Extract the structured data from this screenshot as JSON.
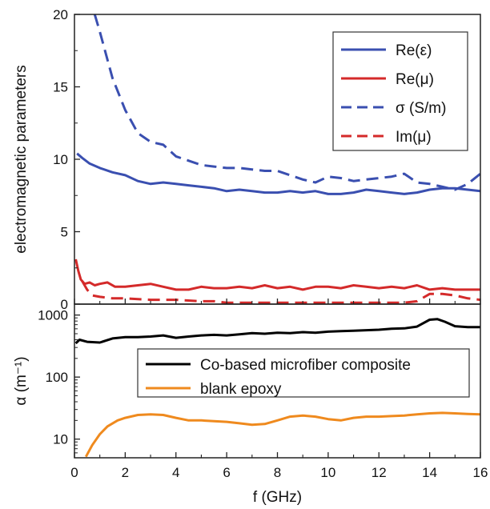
{
  "chart_data": [
    {
      "type": "line",
      "panel": "top",
      "xlabel": "",
      "ylabel": "electromagnetic parameters",
      "xlim": [
        0,
        16
      ],
      "ylim": [
        0,
        20
      ],
      "x_ticks": [
        0,
        2,
        4,
        6,
        8,
        10,
        12,
        14,
        16
      ],
      "y_ticks": [
        0,
        5,
        10,
        15,
        20
      ],
      "grid": false,
      "legend_position": "top-right",
      "series": [
        {
          "name": "Re(ε)",
          "color": "#3a4fb0",
          "dash": "solid",
          "x": [
            0.1,
            0.3,
            0.6,
            1,
            1.5,
            2,
            2.5,
            3,
            3.5,
            4,
            4.5,
            5,
            5.5,
            6,
            6.5,
            7,
            7.5,
            8,
            8.5,
            9,
            9.5,
            10,
            10.5,
            11,
            11.5,
            12,
            12.5,
            13,
            13.5,
            14,
            14.5,
            15,
            15.5,
            16
          ],
          "y": [
            10.4,
            10.1,
            9.7,
            9.4,
            9.1,
            8.9,
            8.5,
            8.3,
            8.4,
            8.3,
            8.2,
            8.1,
            8.0,
            7.8,
            7.9,
            7.8,
            7.7,
            7.7,
            7.8,
            7.7,
            7.8,
            7.6,
            7.6,
            7.7,
            7.9,
            7.8,
            7.7,
            7.6,
            7.7,
            7.9,
            8.0,
            8.0,
            7.9,
            7.8
          ]
        },
        {
          "name": "Re(μ)",
          "color": "#d42a2a",
          "dash": "solid",
          "x": [
            0.05,
            0.15,
            0.25,
            0.4,
            0.6,
            0.8,
            1,
            1.3,
            1.6,
            2,
            2.5,
            3,
            3.5,
            4,
            4.5,
            5,
            5.5,
            6,
            6.5,
            7,
            7.5,
            8,
            8.5,
            9,
            9.5,
            10,
            10.5,
            11,
            11.5,
            12,
            12.5,
            13,
            13.5,
            14,
            14.5,
            15,
            15.5,
            16
          ],
          "y": [
            3.1,
            2.3,
            1.7,
            1.4,
            1.5,
            1.3,
            1.4,
            1.5,
            1.2,
            1.2,
            1.3,
            1.4,
            1.2,
            1.0,
            1.0,
            1.2,
            1.1,
            1.1,
            1.2,
            1.1,
            1.3,
            1.1,
            1.2,
            1.0,
            1.2,
            1.2,
            1.1,
            1.3,
            1.2,
            1.1,
            1.2,
            1.1,
            1.3,
            1.0,
            1.1,
            1.0,
            1.0,
            1.0
          ]
        },
        {
          "name": "σ (S/m)",
          "color": "#3a4fb0",
          "dash": "dashed",
          "x": [
            0.8,
            1,
            1.5,
            2,
            2.5,
            3,
            3.5,
            4,
            4.5,
            5,
            5.5,
            6,
            6.5,
            7,
            7.5,
            8,
            8.5,
            9,
            9.5,
            10,
            10.5,
            11,
            11.5,
            12,
            12.5,
            13,
            13.5,
            14,
            14.5,
            15,
            15.5,
            16
          ],
          "y": [
            20,
            18.8,
            15.6,
            13.4,
            11.8,
            11.2,
            11.0,
            10.2,
            9.9,
            9.6,
            9.5,
            9.4,
            9.4,
            9.3,
            9.2,
            9.2,
            8.9,
            8.6,
            8.4,
            8.8,
            8.7,
            8.5,
            8.6,
            8.7,
            8.8,
            9.0,
            8.4,
            8.3,
            8.1,
            7.9,
            8.3,
            9.0
          ]
        },
        {
          "name": "Im(μ)",
          "color": "#d42a2a",
          "dash": "dashed",
          "x": [
            0.3,
            0.5,
            0.7,
            1,
            1.5,
            2,
            3,
            4,
            5,
            5.5,
            6,
            7,
            8,
            9,
            10,
            11,
            12,
            13,
            13.5,
            14,
            14.5,
            15,
            15.5,
            16
          ],
          "y": [
            1.6,
            1.0,
            0.6,
            0.5,
            0.4,
            0.4,
            0.3,
            0.3,
            0.2,
            0.2,
            0.1,
            0.1,
            0.1,
            0.1,
            0.1,
            0.1,
            0.1,
            0.1,
            0.2,
            0.7,
            0.7,
            0.6,
            0.4,
            0.3
          ]
        }
      ]
    },
    {
      "type": "line",
      "panel": "bottom",
      "xlabel": "f (GHz)",
      "ylabel": "α (m⁻¹)",
      "xlim": [
        0,
        16
      ],
      "ylim": [
        5,
        1500
      ],
      "yscale": "log",
      "x_ticks": [
        0,
        2,
        4,
        6,
        8,
        10,
        12,
        14,
        16
      ],
      "y_ticks": [
        10,
        100,
        1000
      ],
      "grid": false,
      "legend_position": "top-right",
      "series": [
        {
          "name": "Co-based microfiber composite",
          "color": "#000000",
          "dash": "solid",
          "x": [
            0.05,
            0.2,
            0.5,
            1,
            1.5,
            2,
            2.5,
            3,
            3.5,
            4,
            4.5,
            5,
            5.5,
            6,
            6.5,
            7,
            7.5,
            8,
            8.5,
            9,
            9.5,
            10,
            10.5,
            11,
            11.5,
            12,
            12.5,
            13,
            13.5,
            14,
            14.3,
            14.6,
            15,
            15.5,
            16
          ],
          "y": [
            350,
            400,
            370,
            360,
            420,
            440,
            440,
            450,
            470,
            430,
            450,
            470,
            480,
            470,
            490,
            510,
            500,
            520,
            510,
            530,
            520,
            540,
            550,
            560,
            570,
            580,
            600,
            610,
            650,
            840,
            860,
            780,
            660,
            640,
            640
          ]
        },
        {
          "name": "blank epoxy",
          "color": "#ef8a1e",
          "dash": "solid",
          "x": [
            0.45,
            0.7,
            1,
            1.3,
            1.7,
            2,
            2.5,
            3,
            3.5,
            4,
            4.5,
            5,
            5.5,
            6,
            6.5,
            7,
            7.5,
            8,
            8.5,
            9,
            9.5,
            10,
            10.5,
            11,
            11.5,
            12,
            12.5,
            13,
            13.5,
            14,
            14.5,
            15,
            15.5,
            16
          ],
          "y": [
            5.2,
            8,
            12,
            16,
            20,
            22,
            24.5,
            25,
            24.5,
            22,
            20,
            20,
            19.5,
            19,
            18,
            17,
            17.5,
            20,
            23,
            24,
            23,
            21,
            20,
            22,
            23,
            23,
            23.5,
            24,
            25,
            26,
            26.5,
            26,
            25.5,
            25
          ]
        }
      ]
    }
  ]
}
